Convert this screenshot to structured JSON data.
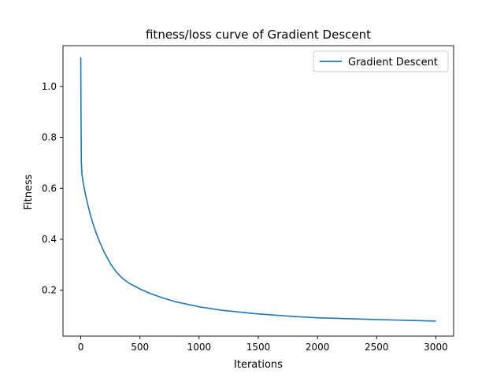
{
  "chart_data": {
    "type": "line",
    "title": "fitness/loss curve of Gradient Descent",
    "xlabel": "Iterations",
    "ylabel": "Fitness",
    "xlim": [
      -150,
      3150
    ],
    "ylim": [
      0.02,
      1.16
    ],
    "x_ticks": [
      0,
      500,
      1000,
      1500,
      2000,
      2500,
      3000
    ],
    "y_ticks": [
      0.2,
      0.4,
      0.6,
      0.8,
      1.0
    ],
    "y_tick_labels": [
      "0.2",
      "0.4",
      "0.6",
      "0.8",
      "1.0"
    ],
    "grid": false,
    "legend": {
      "position": "top-right",
      "entries": [
        "Gradient Descent"
      ]
    },
    "series": [
      {
        "name": "Gradient Descent",
        "color": "#1f77b4",
        "x": [
          0,
          2,
          5,
          10,
          20,
          40,
          60,
          80,
          100,
          130,
          160,
          200,
          250,
          300,
          350,
          400,
          500,
          600,
          700,
          800,
          1000,
          1200,
          1500,
          1800,
          2000,
          2500,
          3000
        ],
        "y": [
          1.115,
          0.9,
          0.7,
          0.655,
          0.625,
          0.575,
          0.535,
          0.498,
          0.466,
          0.425,
          0.389,
          0.348,
          0.305,
          0.272,
          0.248,
          0.23,
          0.205,
          0.185,
          0.169,
          0.155,
          0.135,
          0.121,
          0.107,
          0.097,
          0.092,
          0.085,
          0.079
        ]
      }
    ]
  }
}
